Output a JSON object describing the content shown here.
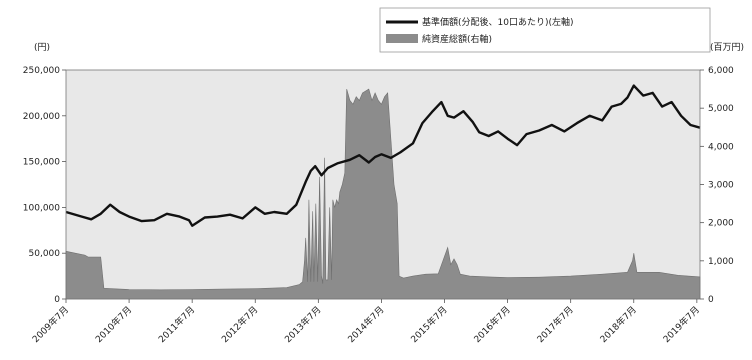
{
  "chart_data": {
    "type": "line",
    "subtype": "dual-axis line with area",
    "title": "",
    "grid": false,
    "background_color": "#e8e8e8",
    "legend": {
      "placement": "top-right",
      "entries": [
        {
          "label": "基準価額(分配後、10口あたり)(左軸)",
          "marker": "line",
          "color": "#111111"
        },
        {
          "label": "純資産総額(右軸)",
          "marker": "area",
          "color": "#8c8c8c"
        }
      ]
    },
    "left_axis": {
      "unit": "(円)",
      "ylim": [
        0,
        250000
      ],
      "ticks": [
        0,
        50000,
        100000,
        150000,
        200000,
        250000
      ],
      "tick_labels": [
        "0",
        "50,000",
        "100,000",
        "150,000",
        "200,000",
        "250,000"
      ]
    },
    "right_axis": {
      "unit": "(百万円)",
      "ylim": [
        0,
        6000
      ],
      "ticks": [
        0,
        1000,
        2000,
        3000,
        4000,
        5000,
        6000
      ],
      "tick_labels": [
        "0",
        "1,000",
        "2,000",
        "3,000",
        "4,000",
        "5,000",
        "6,000"
      ]
    },
    "x_axis": {
      "xlim": [
        2009.5,
        2019.55
      ],
      "ticks": [
        2009.5,
        2010.5,
        2011.5,
        2012.5,
        2013.5,
        2014.5,
        2015.5,
        2016.5,
        2017.5,
        2018.5,
        2019.5
      ],
      "tick_labels": [
        "2009年7月",
        "2010年7月",
        "2011年7月",
        "2012年7月",
        "2013年7月",
        "2014年7月",
        "2015年7月",
        "2016年7月",
        "2017年7月",
        "2018年7月",
        "2019年7月"
      ]
    },
    "series": [
      {
        "name": "基準価額(分配後、10口あたり)(左軸)",
        "axis": "left",
        "style": "line",
        "color": "#111111",
        "x": [
          2009.5,
          2009.75,
          2009.9,
          2010.05,
          2010.2,
          2010.35,
          2010.5,
          2010.7,
          2010.9,
          2011.1,
          2011.3,
          2011.45,
          2011.5,
          2011.7,
          2011.9,
          2012.1,
          2012.3,
          2012.5,
          2012.65,
          2012.8,
          2013.0,
          2013.15,
          2013.3,
          2013.38,
          2013.45,
          2013.55,
          2013.65,
          2013.8,
          2014.0,
          2014.15,
          2014.3,
          2014.4,
          2014.5,
          2014.65,
          2014.8,
          2015.0,
          2015.15,
          2015.3,
          2015.45,
          2015.55,
          2015.65,
          2015.8,
          2015.95,
          2016.05,
          2016.2,
          2016.35,
          2016.5,
          2016.65,
          2016.8,
          2017.0,
          2017.2,
          2017.4,
          2017.6,
          2017.8,
          2018.0,
          2018.15,
          2018.3,
          2018.4,
          2018.5,
          2018.65,
          2018.8,
          2018.95,
          2019.1,
          2019.25,
          2019.4,
          2019.55
        ],
        "values": [
          95000,
          90000,
          87000,
          93000,
          103000,
          95000,
          90000,
          85000,
          86000,
          93000,
          90000,
          86000,
          80000,
          89000,
          90000,
          92000,
          88000,
          100000,
          93000,
          95000,
          93000,
          103000,
          128000,
          140000,
          145000,
          135000,
          143000,
          148000,
          152000,
          157000,
          149000,
          155000,
          158000,
          154000,
          160000,
          170000,
          192000,
          204000,
          215000,
          200000,
          198000,
          205000,
          193000,
          182000,
          178000,
          183000,
          175000,
          168000,
          180000,
          184000,
          190000,
          183000,
          192000,
          200000,
          195000,
          210000,
          213000,
          220000,
          233000,
          222000,
          225000,
          210000,
          215000,
          200000,
          190000,
          187000
        ]
      },
      {
        "name": "純資産総額(右軸)",
        "axis": "right",
        "style": "area",
        "color": "#8c8c8c",
        "x": [
          2009.5,
          2009.8,
          2009.85,
          2010.05,
          2010.1,
          2010.5,
          2011.0,
          2011.5,
          2012.0,
          2012.5,
          2013.0,
          2013.2,
          2013.25,
          2013.28,
          2013.3,
          2013.33,
          2013.35,
          2013.38,
          2013.41,
          2013.43,
          2013.46,
          2013.49,
          2013.52,
          2013.55,
          2013.57,
          2013.6,
          2013.62,
          2013.65,
          2013.68,
          2013.71,
          2013.73,
          2013.76,
          2013.79,
          2013.82,
          2013.84,
          2013.88,
          2013.92,
          2013.95,
          2014.0,
          2014.05,
          2014.1,
          2014.15,
          2014.2,
          2014.3,
          2014.35,
          2014.4,
          2014.45,
          2014.5,
          2014.55,
          2014.6,
          2014.7,
          2014.75,
          2014.78,
          2014.85,
          2015.0,
          2015.2,
          2015.4,
          2015.55,
          2015.6,
          2015.65,
          2015.7,
          2015.75,
          2015.9,
          2016.2,
          2016.5,
          2017.0,
          2017.5,
          2018.0,
          2018.4,
          2018.48,
          2018.5,
          2018.55,
          2018.9,
          2019.2,
          2019.55
        ],
        "values": [
          1250,
          1150,
          1100,
          1100,
          280,
          250,
          240,
          250,
          260,
          270,
          300,
          380,
          450,
          1000,
          1600,
          450,
          2600,
          450,
          2300,
          450,
          2500,
          450,
          3200,
          600,
          400,
          3700,
          500,
          500,
          2400,
          500,
          2600,
          2400,
          2600,
          2500,
          2800,
          3000,
          3300,
          5500,
          5200,
          5100,
          5300,
          5200,
          5400,
          5500,
          5200,
          5400,
          5200,
          5100,
          5300,
          5400,
          3000,
          2500,
          600,
          550,
          600,
          650,
          660,
          1350,
          900,
          1050,
          900,
          650,
          600,
          580,
          560,
          570,
          600,
          650,
          700,
          1000,
          1200,
          700,
          700,
          620,
          580
        ]
      }
    ]
  }
}
